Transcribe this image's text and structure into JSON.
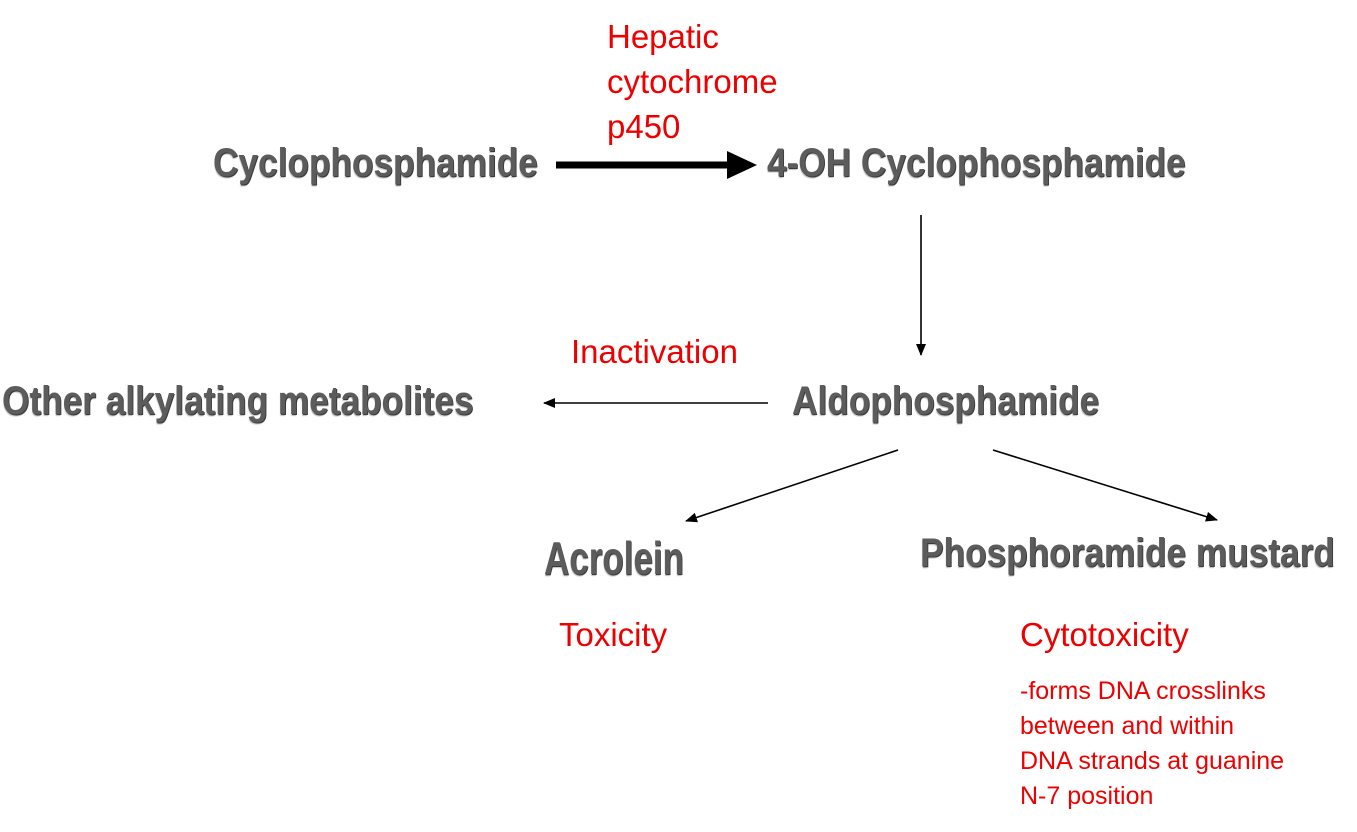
{
  "colors": {
    "node_text": "#5c5c5c",
    "annotation_text": "#ee0000",
    "arrow": "#000000"
  },
  "nodes": {
    "cyclophosphamide": "Cyclophosphamide",
    "hydroxy_cyclophosphamide": "4-OH Cyclophosphamide",
    "aldophosphamide": "Aldophosphamide",
    "other_metabolites": "Other alkylating metabolites",
    "acrolein": "Acrolein",
    "phosphoramide_mustard": "Phosphoramide mustard"
  },
  "annotations": {
    "enzyme_lines": [
      "Hepatic",
      "cytochrome",
      "p450"
    ],
    "inactivation": "Inactivation",
    "toxicity": "Toxicity",
    "cytotoxicity": "Cytotoxicity",
    "mechanism_lines": [
      "-forms DNA crosslinks",
      "between and within",
      "DNA strands at guanine",
      "N-7 position"
    ]
  }
}
